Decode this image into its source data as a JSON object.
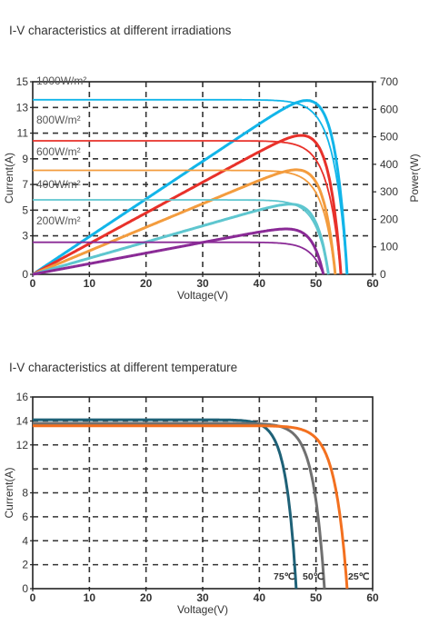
{
  "chart_data": [
    {
      "type": "line",
      "title": "I-V characteristics at different irradiations",
      "xlabel": "Voltage(V)",
      "ylabel": "Current(A)",
      "y2label": "Power(W)",
      "xlim": [
        0,
        60
      ],
      "ylim": [
        0,
        15
      ],
      "y2lim": [
        0,
        700
      ],
      "xticks": [
        "0",
        "10",
        "20",
        "30",
        "40",
        "50",
        "60"
      ],
      "yticks": [
        "0",
        "3",
        "5",
        "7",
        "9",
        "11",
        "13",
        "15"
      ],
      "y2ticks": [
        "0",
        "100",
        "200",
        "300",
        "400",
        "500",
        "600",
        "700"
      ],
      "grid": true,
      "series": [
        {
          "name": "1000W/m²",
          "color": "#12b5e9",
          "isc": 13.6,
          "voc": 55.5,
          "pmax": 632
        },
        {
          "name": "800W/m²",
          "color": "#e8312a",
          "isc": 10.4,
          "voc": 54.4,
          "pmax": 505
        },
        {
          "name": "600W/m²",
          "color": "#f39c3e",
          "isc": 8.1,
          "voc": 53.4,
          "pmax": 380
        },
        {
          "name": "400W/m²",
          "color": "#5ec6cf",
          "isc": 5.8,
          "voc": 52.2,
          "pmax": 255
        },
        {
          "name": "200W/m²",
          "color": "#8a2a96",
          "isc": 2.5,
          "voc": 51.3,
          "pmax": 165
        }
      ]
    },
    {
      "type": "line",
      "title": "I-V characteristics at different temperature",
      "xlabel": "Voltage(V)",
      "ylabel": "Current(A)",
      "xlim": [
        0,
        60
      ],
      "ylim": [
        0,
        16
      ],
      "xticks": [
        "0",
        "10",
        "20",
        "30",
        "40",
        "50",
        "60"
      ],
      "yticks": [
        "0",
        "2",
        "4",
        "6",
        "8",
        "12",
        "14",
        "16"
      ],
      "grid": true,
      "series": [
        {
          "name": "75℃",
          "color": "#1e6177",
          "isc": 14.1,
          "voc": 46.5
        },
        {
          "name": "50℃",
          "color": "#707070",
          "isc": 13.8,
          "voc": 51.5
        },
        {
          "name": "25℃",
          "color": "#f3701f",
          "isc": 13.6,
          "voc": 55.5
        }
      ]
    }
  ]
}
